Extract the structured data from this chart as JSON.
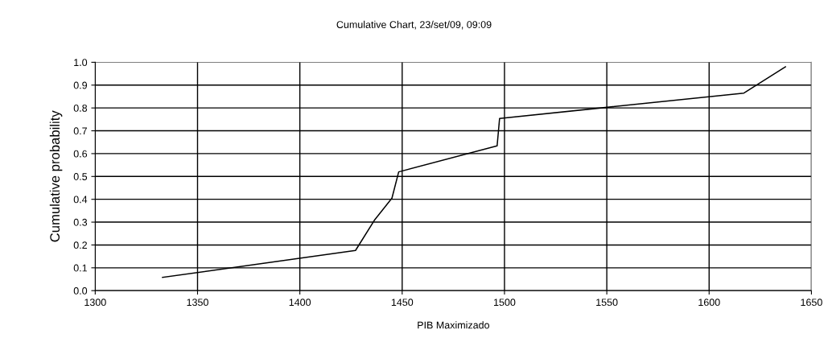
{
  "chart_data": {
    "type": "line",
    "title": "Cumulative Chart, 23/set/09, 09:09",
    "xlabel": "PIB Maximizado",
    "ylabel": "Cumulative probability",
    "x": [
      1332.9,
      1427.2,
      1436.4,
      1445.0,
      1448.3,
      1496.4,
      1497.6,
      1617.0,
      1637.3
    ],
    "series": [
      {
        "color": "#000000",
        "values": [
          0.058,
          0.176,
          0.308,
          0.405,
          0.52,
          0.634,
          0.754,
          0.865,
          0.98
        ]
      }
    ],
    "xlim": [
      1300,
      1650
    ],
    "xticks": [
      1300,
      1350,
      1400,
      1450,
      1500,
      1550,
      1600,
      1650
    ],
    "ylim": [
      0,
      1
    ],
    "yticks": [
      {
        "value": 0,
        "label": "0.0"
      },
      {
        "value": 0.1,
        "label": "0.1"
      },
      {
        "value": 0.2,
        "label": "0.2"
      },
      {
        "value": 0.3,
        "label": "0.3"
      },
      {
        "value": 0.4,
        "label": "0.4"
      },
      {
        "value": 0.5,
        "label": "0.5"
      },
      {
        "value": 0.6,
        "label": "0.6"
      },
      {
        "value": 0.7,
        "label": "0.7"
      },
      {
        "value": 0.8,
        "label": "0.8"
      },
      {
        "value": 0.9,
        "label": "0.9"
      },
      {
        "value": 1,
        "label": "1.0"
      }
    ],
    "grid": true,
    "marker": "none",
    "line_style": "solid"
  }
}
